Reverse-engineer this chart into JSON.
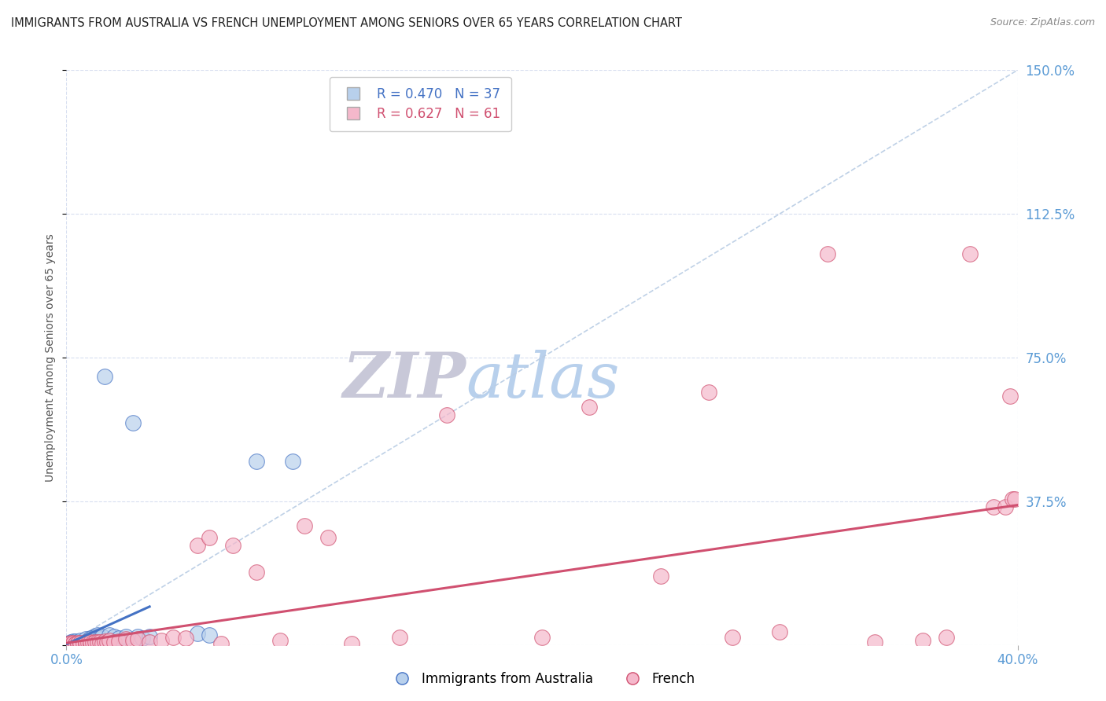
{
  "title": "IMMIGRANTS FROM AUSTRALIA VS FRENCH UNEMPLOYMENT AMONG SENIORS OVER 65 YEARS CORRELATION CHART",
  "source": "Source: ZipAtlas.com",
  "ylabel": "Unemployment Among Seniors over 65 years",
  "legend_labels": [
    "Immigrants from Australia",
    "French"
  ],
  "legend_R": [
    0.47,
    0.627
  ],
  "legend_N": [
    37,
    61
  ],
  "xlim": [
    0,
    0.4
  ],
  "ylim": [
    0,
    1.5
  ],
  "yticks": [
    0,
    0.375,
    0.75,
    1.125,
    1.5
  ],
  "ytick_labels": [
    "",
    "37.5%",
    "75.0%",
    "112.5%",
    "150.0%"
  ],
  "xtick_labels": [
    "0.0%",
    "40.0%"
  ],
  "xticks": [
    0,
    0.4
  ],
  "color_blue": "#b8d0ec",
  "color_pink": "#f5b8cb",
  "line_blue": "#4472c4",
  "line_pink": "#d05070",
  "diagonal_color": "#b8cce4",
  "watermark_zip": "#c8c8d8",
  "watermark_atlas": "#b8d0ec",
  "tick_label_color": "#5b9bd5",
  "ylabel_color": "#555555",
  "title_color": "#222222",
  "source_color": "#888888",
  "grid_color": "#d8dff0",
  "blue_scatter_x": [
    0.001,
    0.002,
    0.002,
    0.003,
    0.003,
    0.003,
    0.004,
    0.004,
    0.004,
    0.005,
    0.005,
    0.005,
    0.006,
    0.006,
    0.007,
    0.007,
    0.008,
    0.009,
    0.01,
    0.011,
    0.012,
    0.013,
    0.014,
    0.015,
    0.016,
    0.018,
    0.02,
    0.022,
    0.025,
    0.028,
    0.03,
    0.032,
    0.035,
    0.055,
    0.06,
    0.08,
    0.095
  ],
  "blue_scatter_y": [
    0.004,
    0.003,
    0.008,
    0.004,
    0.006,
    0.01,
    0.003,
    0.005,
    0.01,
    0.002,
    0.004,
    0.007,
    0.004,
    0.012,
    0.004,
    0.006,
    0.015,
    0.012,
    0.018,
    0.02,
    0.022,
    0.025,
    0.018,
    0.022,
    0.7,
    0.025,
    0.022,
    0.018,
    0.022,
    0.58,
    0.022,
    0.018,
    0.022,
    0.03,
    0.025,
    0.48,
    0.48
  ],
  "pink_scatter_x": [
    0.001,
    0.002,
    0.002,
    0.003,
    0.003,
    0.004,
    0.004,
    0.005,
    0.005,
    0.006,
    0.006,
    0.007,
    0.008,
    0.008,
    0.009,
    0.01,
    0.01,
    0.011,
    0.012,
    0.013,
    0.014,
    0.015,
    0.016,
    0.017,
    0.018,
    0.02,
    0.022,
    0.025,
    0.028,
    0.03,
    0.035,
    0.04,
    0.045,
    0.05,
    0.055,
    0.06,
    0.065,
    0.07,
    0.08,
    0.09,
    0.1,
    0.11,
    0.12,
    0.14,
    0.16,
    0.2,
    0.22,
    0.25,
    0.27,
    0.28,
    0.3,
    0.32,
    0.34,
    0.36,
    0.37,
    0.38,
    0.39,
    0.395,
    0.397,
    0.398,
    0.399
  ],
  "pink_scatter_y": [
    0.004,
    0.003,
    0.005,
    0.003,
    0.005,
    0.003,
    0.004,
    0.003,
    0.005,
    0.004,
    0.006,
    0.003,
    0.004,
    0.007,
    0.005,
    0.004,
    0.007,
    0.005,
    0.007,
    0.008,
    0.007,
    0.004,
    0.01,
    0.007,
    0.012,
    0.008,
    0.01,
    0.015,
    0.012,
    0.015,
    0.008,
    0.012,
    0.02,
    0.018,
    0.26,
    0.28,
    0.004,
    0.26,
    0.19,
    0.012,
    0.31,
    0.28,
    0.004,
    0.02,
    0.6,
    0.02,
    0.62,
    0.18,
    0.66,
    0.02,
    0.035,
    1.02,
    0.008,
    0.012,
    0.02,
    1.02,
    0.36,
    0.36,
    0.65,
    0.38,
    0.38
  ],
  "blue_trend_x": [
    0.0,
    0.035
  ],
  "blue_trend_y_start": 0.002,
  "blue_trend_slope": 2.8,
  "pink_trend_x": [
    0.0,
    0.4
  ],
  "pink_trend_y_start": 0.005,
  "pink_trend_slope": 0.9
}
